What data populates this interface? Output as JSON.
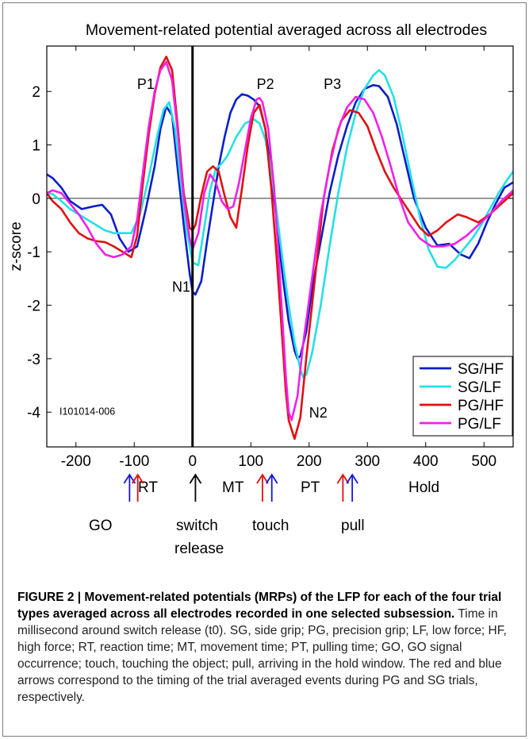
{
  "chart_data": {
    "type": "line",
    "title": "Movement-related potential averaged across all electrodes",
    "xlabel": "",
    "ylabel": "z-score",
    "xlim": [
      -250,
      550
    ],
    "ylim": [
      -4.65,
      2.85
    ],
    "xticks": [
      -200,
      -100,
      0,
      100,
      200,
      300,
      400,
      500
    ],
    "yticks": [
      -4,
      -3,
      -2,
      -1,
      0,
      1,
      2
    ],
    "grid": false,
    "legend_position": "bottom-right",
    "recording_id": "I101014-006",
    "vertical_line_x": 0,
    "peak_labels": [
      {
        "text": "P1",
        "x": -95,
        "y": 2.05
      },
      {
        "text": "P2",
        "x": 110,
        "y": 2.05
      },
      {
        "text": "P3",
        "x": 225,
        "y": 2.05
      },
      {
        "text": "N1",
        "x": -35,
        "y": -1.75
      },
      {
        "text": "N2",
        "x": 200,
        "y": -4.1
      }
    ],
    "series": [
      {
        "name": "SG/HF",
        "color": "#0a1ec8",
        "x": [
          -250,
          -240,
          -225,
          -210,
          -190,
          -170,
          -155,
          -140,
          -125,
          -110,
          -95,
          -80,
          -65,
          -55,
          -45,
          -35,
          -25,
          -15,
          -5,
          0,
          5,
          15,
          25,
          35,
          45,
          55,
          65,
          75,
          85,
          95,
          105,
          115,
          125,
          135,
          145,
          155,
          165,
          175,
          180,
          185,
          195,
          205,
          220,
          235,
          250,
          265,
          280,
          295,
          310,
          320,
          335,
          350,
          365,
          380,
          400,
          420,
          440,
          460,
          475,
          490,
          505,
          520,
          535,
          550
        ],
        "y": [
          0.45,
          0.38,
          0.2,
          -0.05,
          -0.2,
          -0.15,
          -0.12,
          -0.3,
          -0.75,
          -1.0,
          -0.9,
          -0.2,
          0.6,
          1.3,
          1.72,
          1.55,
          0.5,
          -0.5,
          -1.4,
          -1.75,
          -1.8,
          -1.55,
          -0.8,
          -0.1,
          0.6,
          1.15,
          1.6,
          1.85,
          1.95,
          1.92,
          1.85,
          1.72,
          1.3,
          0.5,
          -0.5,
          -1.5,
          -2.3,
          -2.85,
          -3.0,
          -2.95,
          -2.5,
          -1.7,
          -0.8,
          0.1,
          0.8,
          1.35,
          1.8,
          2.05,
          2.12,
          2.1,
          1.9,
          1.4,
          0.7,
          0.0,
          -0.55,
          -0.88,
          -0.85,
          -1.05,
          -1.12,
          -0.85,
          -0.45,
          -0.1,
          0.2,
          0.3
        ]
      },
      {
        "name": "SG/LF",
        "color": "#22e0e6",
        "x": [
          -250,
          -240,
          -225,
          -210,
          -195,
          -180,
          -165,
          -150,
          -135,
          -120,
          -105,
          -90,
          -75,
          -60,
          -50,
          -40,
          -30,
          -20,
          -10,
          0,
          10,
          20,
          30,
          40,
          50,
          60,
          75,
          90,
          105,
          115,
          125,
          135,
          145,
          155,
          165,
          175,
          185,
          190,
          195,
          205,
          220,
          235,
          250,
          265,
          280,
          295,
          310,
          320,
          330,
          345,
          360,
          375,
          390,
          405,
          420,
          435,
          450,
          465,
          480,
          495,
          510,
          525,
          540,
          550
        ],
        "y": [
          0.1,
          0.08,
          -0.05,
          -0.2,
          -0.3,
          -0.4,
          -0.5,
          -0.6,
          -0.65,
          -0.65,
          -0.65,
          -0.3,
          0.4,
          1.2,
          1.65,
          1.8,
          1.3,
          0.3,
          -0.6,
          -1.2,
          -1.25,
          -0.55,
          0.15,
          0.55,
          0.65,
          0.8,
          1.15,
          1.4,
          1.48,
          1.4,
          1.1,
          0.5,
          -0.3,
          -1.2,
          -2.0,
          -2.7,
          -3.2,
          -3.35,
          -3.3,
          -2.9,
          -2.0,
          -0.9,
          0.1,
          0.95,
          1.6,
          2.05,
          2.3,
          2.4,
          2.3,
          1.9,
          1.2,
          0.4,
          -0.35,
          -0.95,
          -1.28,
          -1.3,
          -1.15,
          -0.95,
          -0.75,
          -0.5,
          -0.2,
          0.1,
          0.35,
          0.5
        ]
      },
      {
        "name": "PG/HF",
        "color": "#e01010",
        "x": [
          -250,
          -240,
          -225,
          -210,
          -195,
          -180,
          -165,
          -150,
          -135,
          -120,
          -105,
          -95,
          -85,
          -75,
          -65,
          -55,
          -45,
          -35,
          -25,
          -15,
          -5,
          0,
          5,
          15,
          25,
          35,
          45,
          55,
          65,
          75,
          85,
          95,
          105,
          115,
          125,
          135,
          145,
          155,
          160,
          165,
          175,
          185,
          195,
          210,
          225,
          240,
          255,
          270,
          285,
          300,
          315,
          330,
          345,
          360,
          375,
          390,
          405,
          420,
          435,
          455,
          470,
          490,
          510,
          530,
          550
        ],
        "y": [
          0.1,
          -0.05,
          -0.2,
          -0.45,
          -0.65,
          -0.75,
          -0.8,
          -0.82,
          -0.9,
          -1.0,
          -1.1,
          -0.7,
          0.3,
          1.2,
          1.95,
          2.45,
          2.65,
          2.4,
          1.3,
          0.1,
          -0.55,
          -0.6,
          -0.5,
          0.05,
          0.5,
          0.6,
          0.5,
          0.05,
          -0.35,
          -0.55,
          0.2,
          1.0,
          1.6,
          1.75,
          1.3,
          0.2,
          -1.2,
          -2.8,
          -3.6,
          -4.15,
          -4.5,
          -4.1,
          -3.0,
          -1.5,
          0.0,
          0.9,
          1.45,
          1.65,
          1.6,
          1.35,
          0.9,
          0.5,
          0.2,
          -0.05,
          -0.3,
          -0.55,
          -0.7,
          -0.6,
          -0.45,
          -0.3,
          -0.35,
          -0.45,
          -0.3,
          -0.1,
          0.1
        ]
      },
      {
        "name": "PG/LF",
        "color": "#f020e8",
        "x": [
          -250,
          -240,
          -225,
          -210,
          -195,
          -180,
          -165,
          -150,
          -135,
          -120,
          -105,
          -95,
          -85,
          -75,
          -65,
          -55,
          -45,
          -35,
          -25,
          -15,
          -5,
          0,
          10,
          20,
          30,
          40,
          50,
          60,
          70,
          80,
          90,
          100,
          110,
          115,
          120,
          130,
          140,
          150,
          160,
          165,
          170,
          180,
          190,
          205,
          220,
          235,
          250,
          265,
          280,
          295,
          310,
          325,
          340,
          355,
          370,
          390,
          410,
          430,
          450,
          470,
          490,
          510,
          530,
          550
        ],
        "y": [
          0.1,
          0.15,
          0.1,
          -0.1,
          -0.3,
          -0.55,
          -0.85,
          -1.05,
          -1.1,
          -1.05,
          -0.9,
          -0.4,
          0.5,
          1.35,
          2.0,
          2.4,
          2.55,
          2.2,
          1.2,
          0.0,
          -0.75,
          -0.95,
          -0.65,
          0.1,
          0.45,
          0.3,
          -0.05,
          -0.2,
          -0.15,
          0.3,
          0.9,
          1.5,
          1.85,
          1.88,
          1.8,
          1.3,
          0.2,
          -1.5,
          -3.3,
          -4.0,
          -4.15,
          -3.7,
          -2.7,
          -1.5,
          -0.3,
          0.6,
          1.3,
          1.7,
          1.9,
          1.85,
          1.6,
          1.15,
          0.6,
          0.0,
          -0.45,
          -0.75,
          -0.9,
          -0.9,
          -0.85,
          -0.7,
          -0.5,
          -0.3,
          -0.05,
          0.15
        ]
      }
    ]
  },
  "events": {
    "arrows": [
      {
        "x": -108,
        "color": "#1515e0"
      },
      {
        "x": -94,
        "color": "#e01010"
      },
      {
        "x": 5,
        "color": "#000000"
      },
      {
        "x": 120,
        "color": "#e01010"
      },
      {
        "x": 136,
        "color": "#1515e0"
      },
      {
        "x": 258,
        "color": "#e01010"
      },
      {
        "x": 274,
        "color": "#1515e0"
      }
    ],
    "interval_labels": {
      "rt": "RT",
      "mt": "MT",
      "pt": "PT",
      "hold": "Hold"
    },
    "event_labels": {
      "go": "GO",
      "switch": "switch",
      "release": "release",
      "touch": "touch",
      "pull": "pull"
    }
  },
  "caption": {
    "bold": "FIGURE 2 | Movement-related potentials (MRPs) of the LFP for each of the four trial types averaged across all electrodes recorded in one selected subsession.",
    "text": " Time in millisecond around switch release (t0). SG, side grip; PG, precision grip; LF, low force; HF, high force; RT, reaction time; MT, movement time; PT, pulling time; GO, GO signal occurrence; touch, touching the object; pull, arriving in the hold window. The red and blue arrows correspond to the timing of the trial averaged events during PG and SG trials, respectively."
  }
}
